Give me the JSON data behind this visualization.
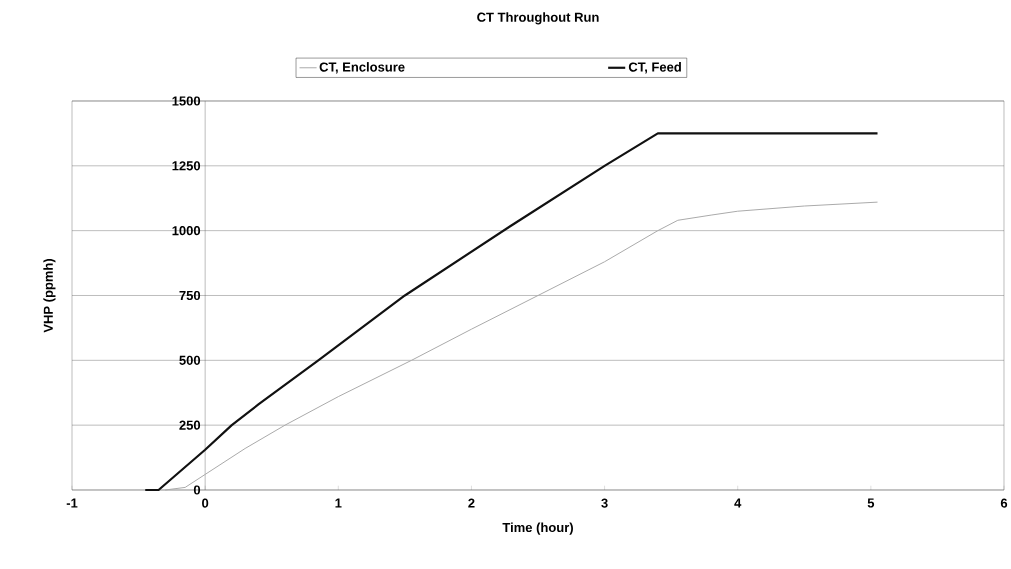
{
  "chart_data": {
    "type": "line",
    "title": "CT Throughout Run",
    "xlabel": "Time (hour)",
    "ylabel": "VHP (ppmh)",
    "xlim": [
      -1,
      6
    ],
    "xticks": [
      -1,
      0,
      1,
      2,
      3,
      4,
      5,
      6
    ],
    "ylim": [
      0,
      1500
    ],
    "yticks": [
      0,
      250,
      500,
      750,
      1000,
      1250,
      1500
    ],
    "grid": "y",
    "legend": "top",
    "marker": "none",
    "line_style": "solid",
    "series": [
      {
        "name": "CT, Enclosure",
        "color": "#aaaaaa",
        "x": [
          -0.3,
          -0.15,
          0,
          0.3,
          0.6,
          1.0,
          1.55,
          2.0,
          2.5,
          3.0,
          3.4,
          3.55,
          3.8,
          4.0,
          4.5,
          5.05
        ],
        "values": [
          0,
          10,
          60,
          160,
          250,
          360,
          500,
          620,
          750,
          880,
          1000,
          1040,
          1060,
          1075,
          1095,
          1110
        ]
      },
      {
        "name": "CT, Feed",
        "color": "#111111",
        "x": [
          -0.45,
          -0.35,
          0,
          0.2,
          0.4,
          0.85,
          1.5,
          2.3,
          3.0,
          3.4,
          3.45,
          5.05
        ],
        "values": [
          0,
          0,
          155,
          250,
          330,
          500,
          750,
          1020,
          1250,
          1375,
          1375,
          1375
        ]
      }
    ]
  }
}
